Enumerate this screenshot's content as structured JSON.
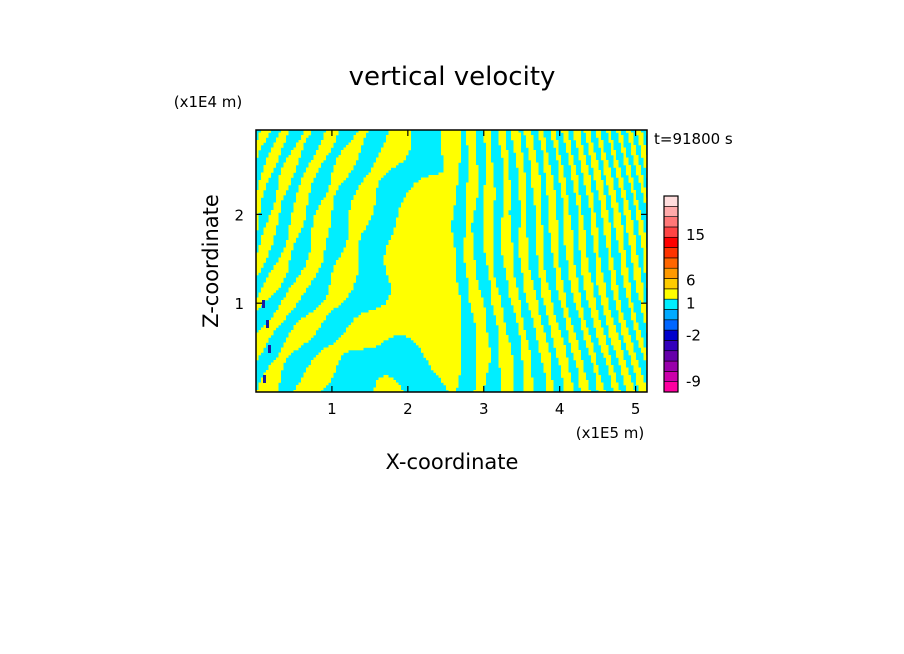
{
  "chart_data": {
    "type": "heatmap",
    "title": "vertical velocity",
    "xlabel": "X-coordinate",
    "ylabel": "Z-coordinate",
    "x_unit": "(x1E5 m)",
    "y_unit": "(x1E4 m)",
    "time_label": "t=91800 s",
    "xlim": [
      0,
      5.15
    ],
    "ylim": [
      0,
      2.95
    ],
    "x_ticks": [
      1,
      2,
      3,
      4,
      5
    ],
    "y_ticks": [
      1,
      2
    ],
    "field_colors": {
      "positive_small": "#ffff00",
      "negative_small": "#00eeff",
      "strong_negative": "#1a1aa0"
    },
    "colorbar": {
      "levels_bottom_to_top": [
        {
          "color": "#ff00a0"
        },
        {
          "color": "#cc00aa"
        },
        {
          "color": "#9900aa"
        },
        {
          "color": "#6600aa"
        },
        {
          "color": "#3300bb"
        },
        {
          "color": "#0000cc"
        },
        {
          "color": "#0066ff"
        },
        {
          "color": "#00aaff"
        },
        {
          "color": "#00eeff"
        },
        {
          "color": "#ffff00"
        },
        {
          "color": "#ffcc00"
        },
        {
          "color": "#ff9900"
        },
        {
          "color": "#ff6600"
        },
        {
          "color": "#ff3300"
        },
        {
          "color": "#ff0000"
        },
        {
          "color": "#ff4444"
        },
        {
          "color": "#ff7777"
        },
        {
          "color": "#ffaaaa"
        },
        {
          "color": "#ffdddd"
        }
      ],
      "tick_labels": [
        "-9",
        "-2",
        "1",
        "6",
        "15"
      ]
    }
  }
}
